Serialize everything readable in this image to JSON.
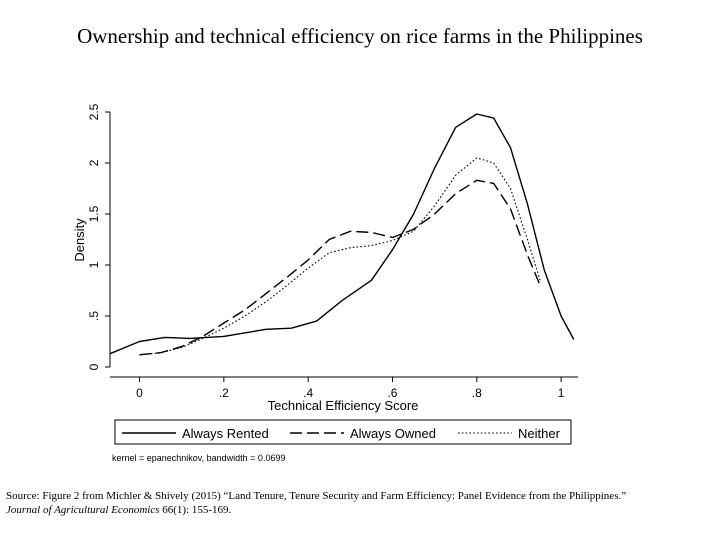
{
  "title": "Ownership and technical efficiency on rice farms in the Philippines",
  "source": {
    "text": "Source: Figure 2 from Michler & Shively (2015) “Land Tenure, Tenure Security and Farm Efficiency: Panel Evidence from the Philippines.”",
    "journal": "Journal of Agricultural Economics",
    "citation_tail": " 66(1): 155-169."
  },
  "chart_data": {
    "type": "line",
    "xlabel": "Technical Efficiency Score",
    "ylabel": "Density",
    "xlim": [
      -0.07,
      1.04
    ],
    "ylim": [
      0,
      2.5
    ],
    "xticks": [
      0,
      0.2,
      0.4,
      0.6,
      0.8,
      1
    ],
    "xtick_labels": [
      "0",
      ".2",
      ".4",
      ".6",
      ".8",
      "1"
    ],
    "yticks": [
      0,
      0.5,
      1,
      1.5,
      2,
      2.5
    ],
    "ytick_labels": [
      "0",
      ".5",
      "1",
      "1.5",
      "2",
      "2.5"
    ],
    "grid": false,
    "legend_position": "bottom",
    "note": "kernel = epanechnikov, bandwidth = 0.0699",
    "series": [
      {
        "name": "Always Rented",
        "style": "solid",
        "x": [
          -0.07,
          0.0,
          0.06,
          0.12,
          0.2,
          0.3,
          0.36,
          0.42,
          0.48,
          0.55,
          0.6,
          0.65,
          0.7,
          0.75,
          0.8,
          0.84,
          0.88,
          0.92,
          0.96,
          1.0,
          1.03
        ],
        "y": [
          0.13,
          0.25,
          0.29,
          0.28,
          0.3,
          0.37,
          0.38,
          0.45,
          0.65,
          0.85,
          1.15,
          1.5,
          1.95,
          2.35,
          2.48,
          2.44,
          2.15,
          1.6,
          0.95,
          0.5,
          0.27
        ]
      },
      {
        "name": "Always Owned",
        "style": "dashed",
        "x": [
          0.0,
          0.05,
          0.1,
          0.15,
          0.2,
          0.25,
          0.3,
          0.35,
          0.4,
          0.45,
          0.5,
          0.55,
          0.6,
          0.65,
          0.7,
          0.75,
          0.8,
          0.84,
          0.88,
          0.92,
          0.95
        ],
        "y": [
          0.12,
          0.14,
          0.2,
          0.3,
          0.43,
          0.56,
          0.72,
          0.88,
          1.05,
          1.25,
          1.33,
          1.32,
          1.27,
          1.35,
          1.5,
          1.7,
          1.83,
          1.8,
          1.55,
          1.1,
          0.8
        ]
      },
      {
        "name": "Neither",
        "style": "dotted",
        "x": [
          0.0,
          0.05,
          0.1,
          0.15,
          0.2,
          0.25,
          0.3,
          0.35,
          0.4,
          0.45,
          0.5,
          0.55,
          0.6,
          0.65,
          0.7,
          0.75,
          0.8,
          0.84,
          0.88,
          0.92,
          0.95
        ],
        "y": [
          0.12,
          0.14,
          0.19,
          0.28,
          0.38,
          0.5,
          0.64,
          0.8,
          0.97,
          1.12,
          1.17,
          1.19,
          1.24,
          1.33,
          1.58,
          1.88,
          2.05,
          2.0,
          1.75,
          1.25,
          0.85
        ]
      }
    ]
  }
}
